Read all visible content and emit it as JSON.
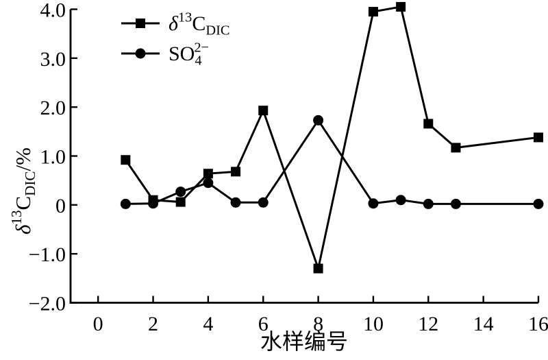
{
  "chart_data": {
    "type": "line",
    "title": "",
    "xlabel": "水样编号",
    "ylabel": "δ13C_DIC/%",
    "ylabel_parts": [
      {
        "t": "δ",
        "i": true
      },
      {
        "t": "13",
        "s": "sup"
      },
      {
        "t": "C"
      },
      {
        "t": "DIC",
        "s": "sub"
      },
      {
        "t": "/%"
      }
    ],
    "xlim": [
      -1,
      16
    ],
    "ylim": [
      -2,
      4
    ],
    "grid": false,
    "legend_position": "top-left",
    "x_ticks": {
      "values": [
        0,
        2,
        4,
        6,
        8,
        10,
        12,
        14,
        16
      ],
      "labels": [
        "0",
        "2",
        "4",
        "6",
        "8",
        "10",
        "12",
        "14",
        "16"
      ]
    },
    "y_ticks": {
      "values": [
        -2,
        -1,
        0,
        1,
        2,
        3,
        4
      ],
      "labels": [
        "−2.0",
        "−1.0",
        "0",
        "1.0",
        "2.0",
        "3.0",
        "4.0"
      ]
    },
    "x": [
      1,
      2,
      3,
      4,
      5,
      6,
      8,
      10,
      11,
      12,
      13,
      16
    ],
    "series": [
      {
        "name": "delta13C-DIC",
        "label": "δ13CDIC",
        "label_parts": [
          {
            "t": "δ",
            "i": true
          },
          {
            "t": "13",
            "s": "sup"
          },
          {
            "t": "C"
          },
          {
            "t": "DIC",
            "s": "sub"
          }
        ],
        "marker": "square",
        "color": "#000000",
        "values": [
          0.92,
          0.1,
          0.06,
          0.64,
          0.68,
          1.93,
          -1.3,
          3.95,
          4.05,
          1.66,
          1.17,
          1.38
        ]
      },
      {
        "name": "SO4-2minus",
        "label": "SO42−",
        "label_parts": [
          {
            "t": "SO"
          },
          {
            "t": "4",
            "s": "sub"
          },
          {
            "t": "2−",
            "s": "sup",
            "dx": "-0.55em"
          }
        ],
        "marker": "circle",
        "color": "#000000",
        "values": [
          0.02,
          0.03,
          0.27,
          0.45,
          0.05,
          0.05,
          1.73,
          0.03,
          0.1,
          0.02,
          0.02,
          0.02
        ]
      }
    ],
    "colors": {
      "foreground": "#000000",
      "background": "#ffffff"
    }
  }
}
